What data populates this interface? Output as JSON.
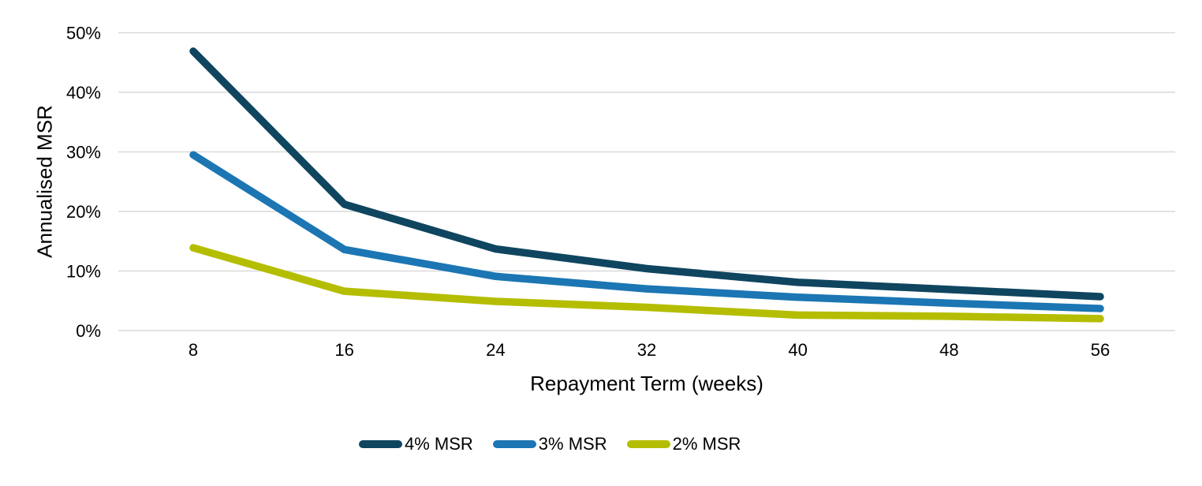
{
  "figure": {
    "background_color": "#ffffff"
  },
  "chart_data": {
    "type": "line",
    "title": "",
    "xlabel": "Repayment Term (weeks)",
    "ylabel": "Annualised MSR",
    "x": [
      8,
      16,
      24,
      32,
      40,
      48,
      56
    ],
    "x_tick_labels": [
      "8",
      "16",
      "24",
      "32",
      "40",
      "48",
      "56"
    ],
    "y_ticks": [
      0,
      10,
      20,
      30,
      40,
      50
    ],
    "y_tick_labels": [
      "0%",
      "10%",
      "20%",
      "30%",
      "40%",
      "50%"
    ],
    "xlim": [
      8,
      56
    ],
    "ylim": [
      0,
      50
    ],
    "grid": "horizontal-only",
    "gridline_color": "#d9d9d9",
    "text_color": "#000000",
    "line_width": 9.5,
    "legend_position": "bottom-center",
    "series": [
      {
        "name": "4% MSR",
        "color": "#0f455f",
        "values": [
          46.9,
          21.2,
          13.7,
          10.4,
          8.1,
          6.9,
          5.7
        ]
      },
      {
        "name": "3% MSR",
        "color": "#1b76b3",
        "values": [
          29.5,
          13.6,
          9.1,
          7.0,
          5.6,
          4.6,
          3.7
        ]
      },
      {
        "name": "2% MSR",
        "color": "#b5bd00",
        "values": [
          13.9,
          6.6,
          4.9,
          3.9,
          2.6,
          2.4,
          2.0
        ]
      }
    ]
  }
}
